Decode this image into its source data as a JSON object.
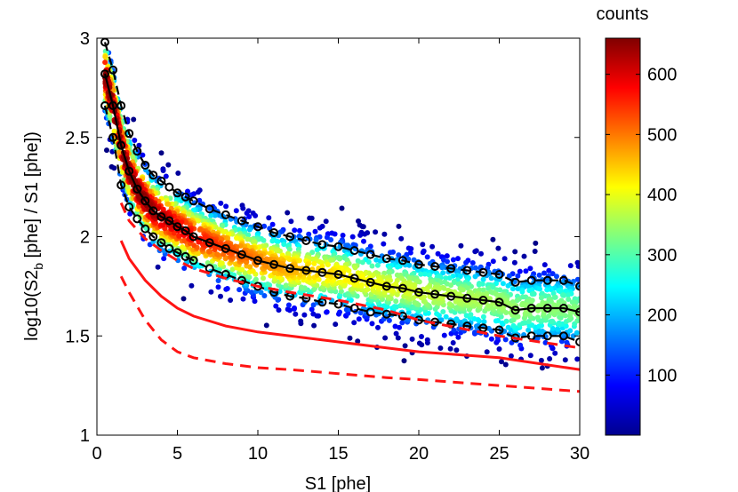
{
  "chart_data": {
    "type": "scatter",
    "xlabel": "S1 [phe]",
    "ylabel": "log10(S2_b [phe] / S1 [phe])",
    "ylabel_parts": {
      "pre": "log10(S2",
      "sub": "b",
      "post": " [phe] / S1 [phe])"
    },
    "xlim": [
      0,
      30
    ],
    "ylim": [
      1,
      3
    ],
    "xticks": [
      "0",
      "5",
      "10",
      "15",
      "20",
      "25",
      "30"
    ],
    "yticks": [
      "1",
      "1.5",
      "2",
      "2.5",
      "3"
    ],
    "colorbar": {
      "label": "counts",
      "range": [
        0,
        660
      ],
      "ticks": [
        "100",
        "200",
        "300",
        "400",
        "500",
        "600"
      ],
      "colormap": "jet"
    },
    "series": [
      {
        "style": "solid-black-with-circles",
        "x": [
          0.5,
          1.0,
          1.5,
          2.0,
          2.5,
          3.0,
          3.5,
          4.0,
          4.5,
          5.0,
          5.5,
          6.0,
          7.0,
          8.0,
          9.0,
          10.0,
          11.0,
          12.0,
          13.0,
          14.0,
          15.0,
          16.0,
          17.0,
          18.0,
          19.0,
          20.0,
          21.0,
          22.0,
          23.0,
          24.0,
          25.0,
          26.0,
          27.0,
          28.0,
          29.0,
          30.0
        ],
        "y": [
          2.82,
          2.66,
          2.46,
          2.33,
          2.24,
          2.18,
          2.13,
          2.1,
          2.08,
          2.05,
          2.03,
          2.0,
          1.97,
          1.94,
          1.91,
          1.88,
          1.86,
          1.84,
          1.83,
          1.82,
          1.81,
          1.79,
          1.77,
          1.75,
          1.74,
          1.72,
          1.71,
          1.7,
          1.69,
          1.68,
          1.67,
          1.63,
          1.64,
          1.64,
          1.64,
          1.62
        ]
      },
      {
        "style": "dashed-black-with-circles-upper",
        "x": [
          0.5,
          1.0,
          1.5,
          2.0,
          2.5,
          3.0,
          3.5,
          4.0,
          4.5,
          5.0,
          5.5,
          6.0,
          7.0,
          8.0,
          9.0,
          10.0,
          11.0,
          12.0,
          13.0,
          14.0,
          15.0,
          16.0,
          17.0,
          18.0,
          19.0,
          20.0,
          21.0,
          22.0,
          23.0,
          24.0,
          25.0,
          26.0,
          27.0,
          28.0,
          29.0,
          30.0
        ],
        "y": [
          2.98,
          2.84,
          2.66,
          2.52,
          2.43,
          2.36,
          2.31,
          2.28,
          2.25,
          2.22,
          2.2,
          2.18,
          2.14,
          2.11,
          2.08,
          2.05,
          2.02,
          2.0,
          1.98,
          1.96,
          1.95,
          1.93,
          1.91,
          1.89,
          1.88,
          1.86,
          1.85,
          1.84,
          1.83,
          1.82,
          1.81,
          1.77,
          1.78,
          1.78,
          1.78,
          1.75
        ]
      },
      {
        "style": "dashed-black-with-circles-lower",
        "x": [
          0.5,
          1.0,
          1.5,
          2.0,
          2.5,
          3.0,
          3.5,
          4.0,
          4.5,
          5.0,
          5.5,
          6.0,
          7.0,
          8.0,
          9.0,
          10.0,
          11.0,
          12.0,
          13.0,
          14.0,
          15.0,
          16.0,
          17.0,
          18.0,
          19.0,
          20.0,
          21.0,
          22.0,
          23.0,
          24.0,
          25.0,
          26.0,
          27.0,
          28.0,
          29.0,
          30.0
        ],
        "y": [
          2.66,
          2.5,
          2.26,
          2.15,
          2.09,
          2.04,
          2.0,
          1.97,
          1.94,
          1.92,
          1.9,
          1.88,
          1.84,
          1.81,
          1.78,
          1.75,
          1.72,
          1.7,
          1.69,
          1.67,
          1.66,
          1.64,
          1.62,
          1.61,
          1.6,
          1.58,
          1.57,
          1.56,
          1.55,
          1.54,
          1.53,
          1.49,
          1.5,
          1.5,
          1.5,
          1.47
        ]
      },
      {
        "style": "solid-red",
        "x": [
          1.5,
          2,
          3,
          4,
          5,
          6,
          8,
          10,
          12,
          15,
          18,
          20,
          25,
          30
        ],
        "y": [
          1.98,
          1.89,
          1.78,
          1.7,
          1.64,
          1.6,
          1.55,
          1.52,
          1.5,
          1.47,
          1.44,
          1.42,
          1.39,
          1.33
        ]
      },
      {
        "style": "dashed-red-lower",
        "x": [
          1.5,
          2,
          3,
          4,
          5,
          6,
          8,
          10,
          12,
          15,
          18,
          20,
          25,
          30
        ],
        "y": [
          1.8,
          1.72,
          1.58,
          1.48,
          1.42,
          1.39,
          1.36,
          1.34,
          1.33,
          1.31,
          1.29,
          1.28,
          1.25,
          1.22
        ]
      },
      {
        "style": "dashed-red-upper",
        "x": [
          1.5,
          2,
          3,
          4,
          5,
          6,
          8,
          10,
          12,
          15,
          18,
          20,
          25,
          30
        ],
        "y": [
          2.17,
          2.08,
          1.99,
          1.93,
          1.88,
          1.84,
          1.79,
          1.75,
          1.72,
          1.68,
          1.63,
          1.58,
          1.5,
          1.44
        ]
      }
    ],
    "density_band": {
      "description": "scatter density following the central curve",
      "center_series_index": 0,
      "spread_log10": 0.1,
      "point_count": 2600
    }
  }
}
